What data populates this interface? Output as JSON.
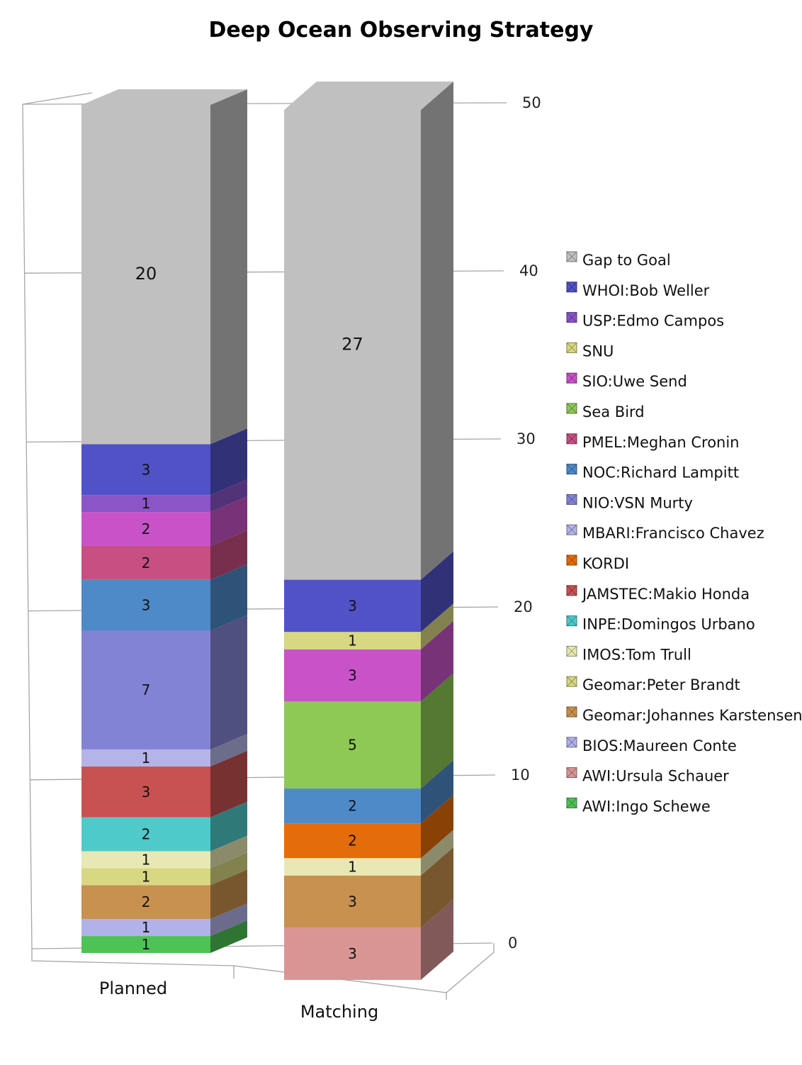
{
  "chart_data": {
    "type": "bar",
    "stacked": true,
    "three_d": true,
    "title": "Deep Ocean Observing Strategy",
    "categories": [
      "Planned",
      "Matching"
    ],
    "ylim": [
      0,
      50
    ],
    "yticks": [
      "0",
      "10",
      "20",
      "30",
      "40",
      "50"
    ],
    "grid": true,
    "legend_position": "right",
    "series": [
      {
        "name": "AWI:Ingo Schewe",
        "color": "#4fc255",
        "values": [
          1,
          0
        ]
      },
      {
        "name": "AWI:Ursula Schauer",
        "color": "#d99594",
        "values": [
          0,
          3
        ]
      },
      {
        "name": "BIOS:Maureen Conte",
        "color": "#b2b2ea",
        "values": [
          1,
          0
        ]
      },
      {
        "name": "Geomar:Johannes Karstensen",
        "color": "#c8914f",
        "values": [
          2,
          3
        ]
      },
      {
        "name": "Geomar:Peter Brandt",
        "color": "#d8d882",
        "values": [
          1,
          0
        ]
      },
      {
        "name": "IMOS:Tom Trull",
        "color": "#e8e8b4",
        "values": [
          1,
          1
        ]
      },
      {
        "name": "INPE:Domingos Urbano",
        "color": "#4fcaca",
        "values": [
          2,
          0
        ]
      },
      {
        "name": "JAMSTEC:Makio Honda",
        "color": "#c85252",
        "values": [
          3,
          0
        ]
      },
      {
        "name": "KORDI",
        "color": "#e46c0a",
        "values": [
          0,
          2
        ]
      },
      {
        "name": "MBARI:Francisco Chavez",
        "color": "#b4b4e8",
        "values": [
          1,
          0
        ]
      },
      {
        "name": "NIO:VSN Murty",
        "color": "#8383d6",
        "values": [
          7,
          0
        ]
      },
      {
        "name": "NOC:Richard Lampitt",
        "color": "#4f8ac8",
        "values": [
          3,
          2
        ]
      },
      {
        "name": "PMEL:Meghan Cronin",
        "color": "#c84f82",
        "values": [
          2,
          0
        ]
      },
      {
        "name": "Sea Bird",
        "color": "#8ec855",
        "values": [
          0,
          5
        ]
      },
      {
        "name": "SIO:Uwe Send",
        "color": "#c853c8",
        "values": [
          2,
          3
        ]
      },
      {
        "name": "SNU",
        "color": "#d8d882",
        "values": [
          0,
          1
        ]
      },
      {
        "name": "USP:Edmo Campos",
        "color": "#8b55c8",
        "values": [
          1,
          0
        ]
      },
      {
        "name": "WHOI:Bob Weller",
        "color": "#5252c8",
        "values": [
          3,
          3
        ]
      },
      {
        "name": "Gap to Goal",
        "color": "#c0c0c0",
        "values": [
          20,
          27
        ]
      }
    ]
  }
}
